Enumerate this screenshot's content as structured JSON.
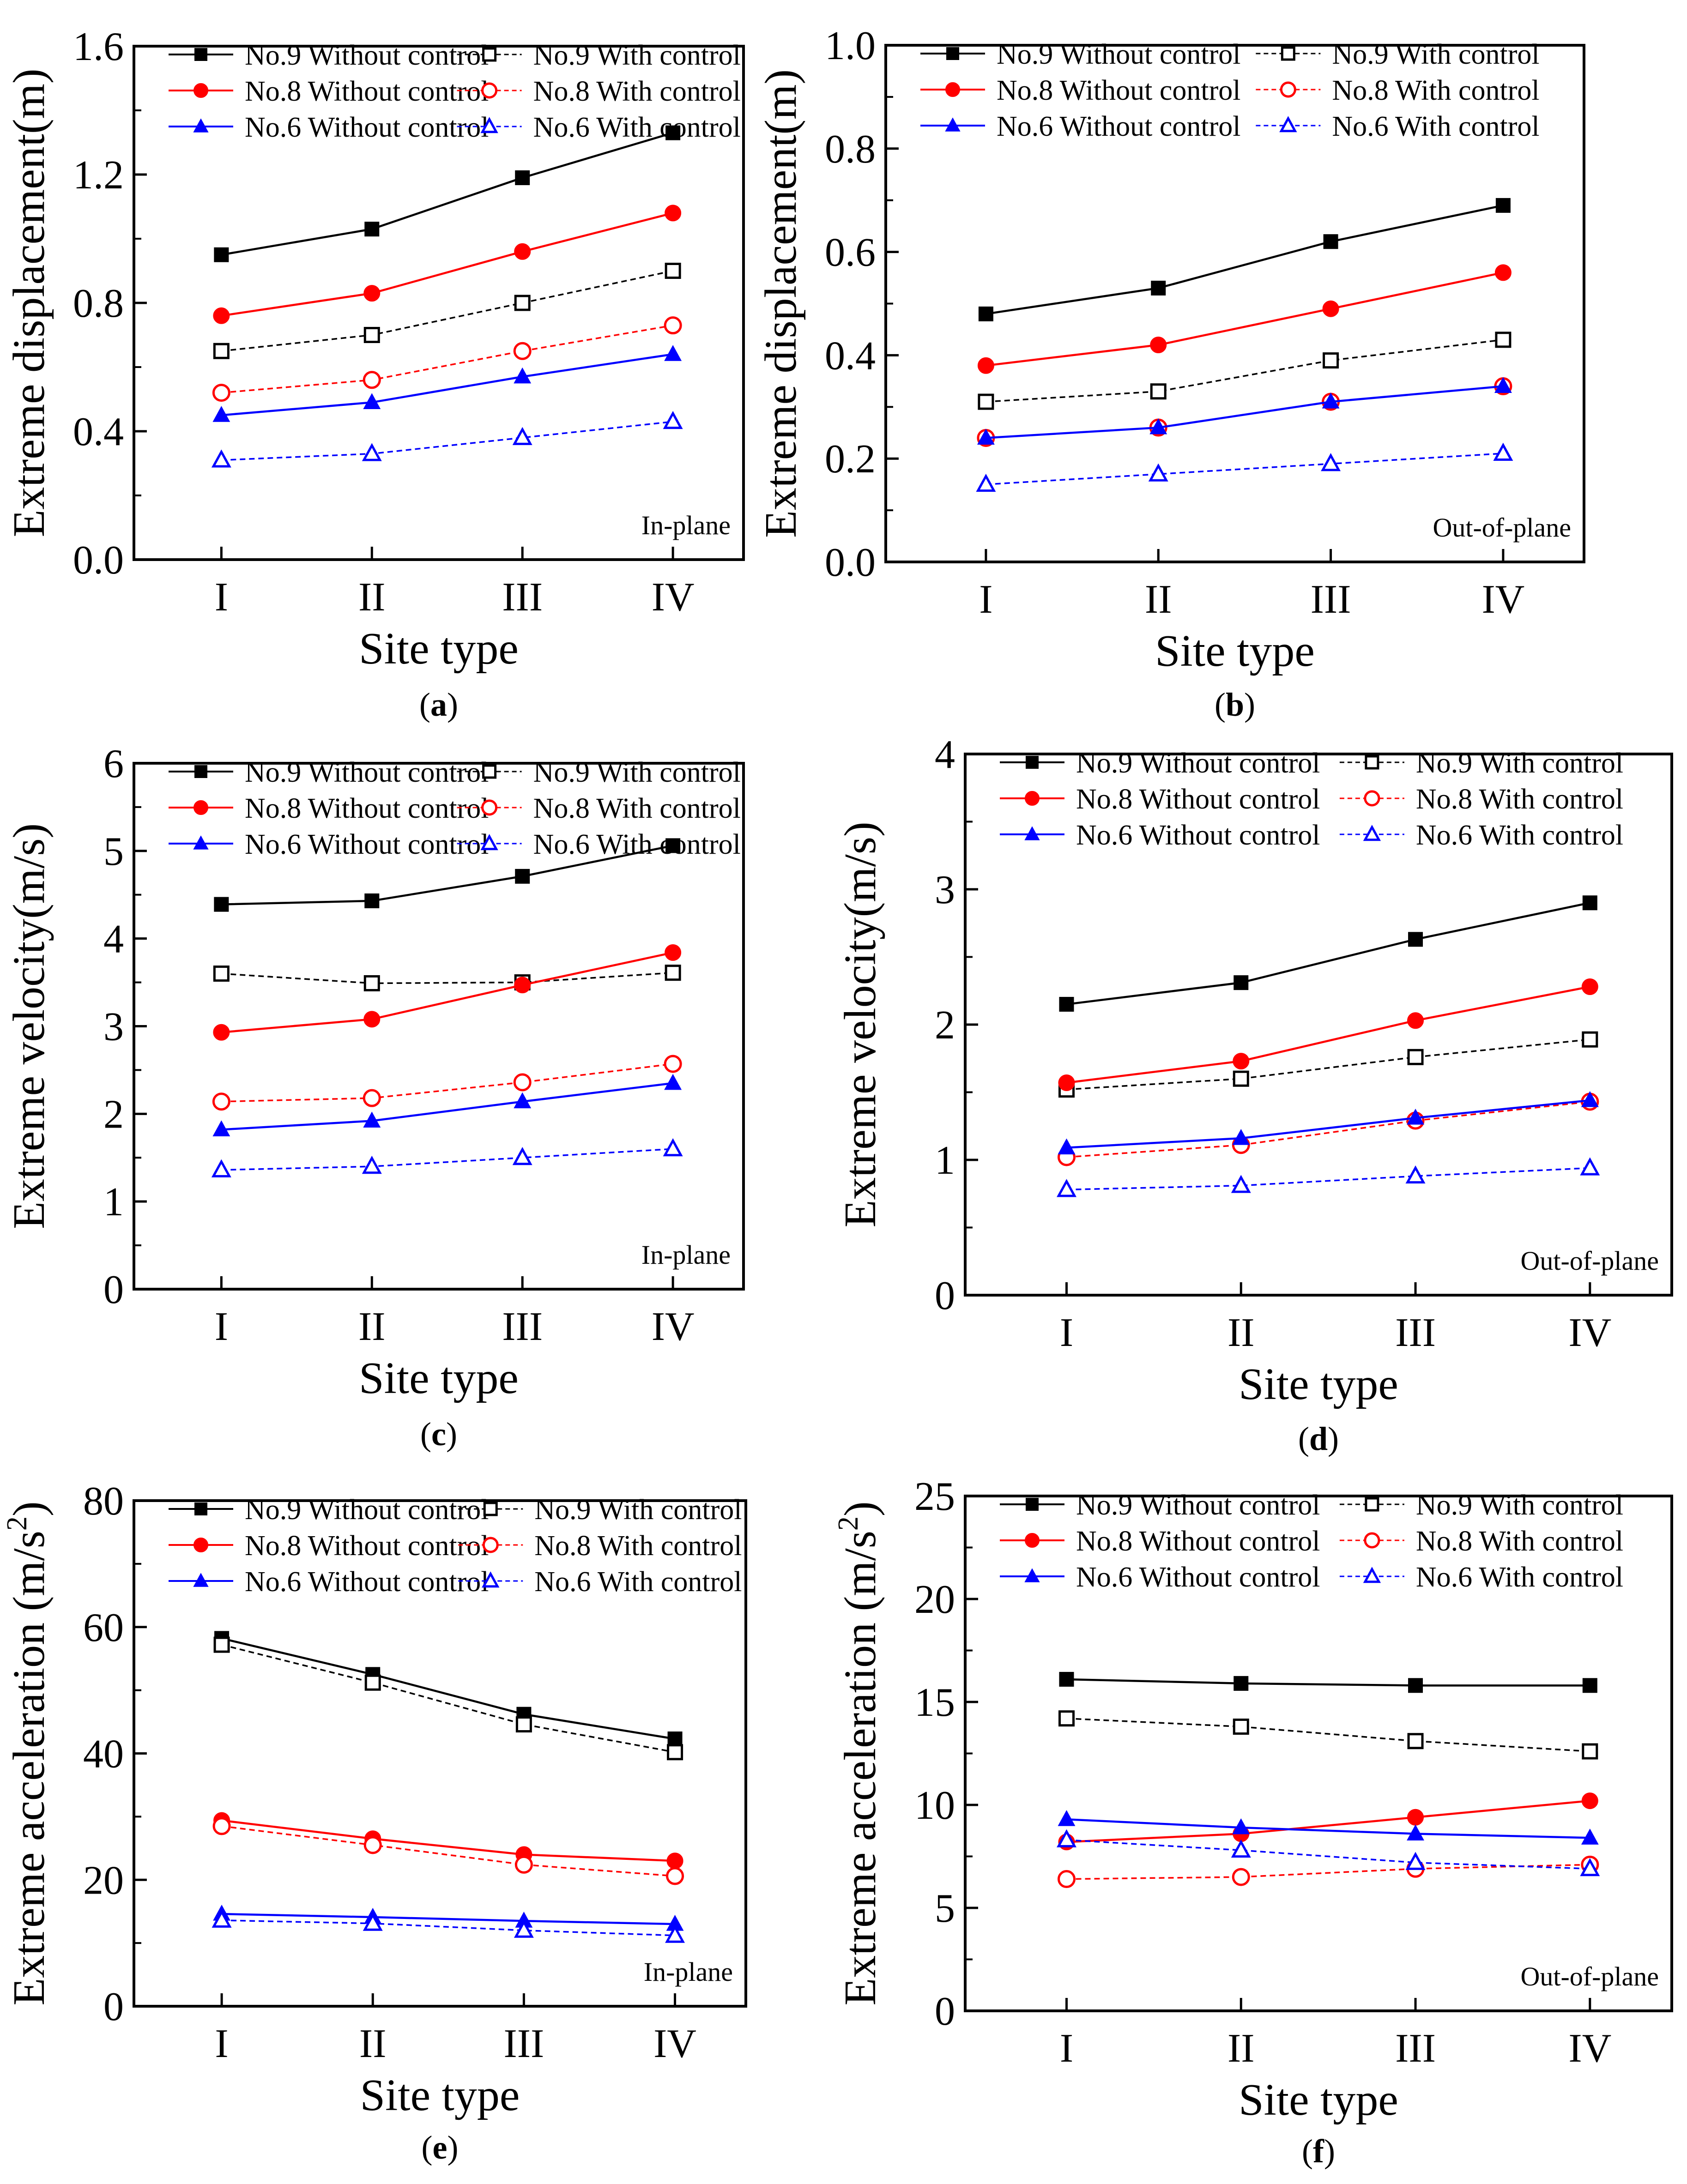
{
  "chart_data": [
    {
      "type": "line",
      "panel": "(a)",
      "caption_letter": "a",
      "annotation": "In-plane",
      "categories": [
        "I",
        "II",
        "III",
        "IV"
      ],
      "xlabel": "Site type",
      "ylabel": "Extreme displacement(m)",
      "ylim": [
        0,
        1.6
      ],
      "yticks": [
        "0.0",
        "0.4",
        "0.8",
        "1.2",
        "1.6"
      ],
      "legend_position": "top",
      "series": [
        {
          "name": "No.9 Without control",
          "color": "#000000",
          "marker": "square",
          "filled": true,
          "dashed": false,
          "values": [
            0.95,
            1.03,
            1.19,
            1.33
          ]
        },
        {
          "name": "No.9 With control",
          "color": "#000000",
          "marker": "square",
          "filled": false,
          "dashed": true,
          "values": [
            0.65,
            0.7,
            0.8,
            0.9
          ]
        },
        {
          "name": "No.8 Without control",
          "color": "#ff0000",
          "marker": "circle",
          "filled": true,
          "dashed": false,
          "values": [
            0.76,
            0.83,
            0.96,
            1.08
          ]
        },
        {
          "name": "No.8 With control",
          "color": "#ff0000",
          "marker": "circle",
          "filled": false,
          "dashed": true,
          "values": [
            0.52,
            0.56,
            0.65,
            0.73
          ]
        },
        {
          "name": "No.6 Without control",
          "color": "#0000ff",
          "marker": "triangle",
          "filled": true,
          "dashed": false,
          "values": [
            0.45,
            0.49,
            0.57,
            0.64
          ]
        },
        {
          "name": "No.6 With control",
          "color": "#0000ff",
          "marker": "triangle",
          "filled": false,
          "dashed": true,
          "values": [
            0.31,
            0.33,
            0.38,
            0.43
          ]
        }
      ]
    },
    {
      "type": "line",
      "panel": "(b)",
      "caption_letter": "b",
      "annotation": "Out-of-plane",
      "categories": [
        "I",
        "II",
        "III",
        "IV"
      ],
      "xlabel": "Site type",
      "ylabel": "Extreme displacement(m)",
      "ylim": [
        0,
        1.0
      ],
      "yticks": [
        "0.0",
        "0.2",
        "0.4",
        "0.6",
        "0.8",
        "1.0"
      ],
      "legend_position": "top",
      "series": [
        {
          "name": "No.9 Without control",
          "color": "#000000",
          "marker": "square",
          "filled": true,
          "dashed": false,
          "values": [
            0.48,
            0.53,
            0.62,
            0.69
          ]
        },
        {
          "name": "No.9 With control",
          "color": "#000000",
          "marker": "square",
          "filled": false,
          "dashed": true,
          "values": [
            0.31,
            0.33,
            0.39,
            0.43
          ]
        },
        {
          "name": "No.8 Without control",
          "color": "#ff0000",
          "marker": "circle",
          "filled": true,
          "dashed": false,
          "values": [
            0.38,
            0.42,
            0.49,
            0.56
          ]
        },
        {
          "name": "No.8 With control",
          "color": "#ff0000",
          "marker": "circle",
          "filled": false,
          "dashed": true,
          "values": [
            0.24,
            0.26,
            0.31,
            0.34
          ]
        },
        {
          "name": "No.6 Without control",
          "color": "#0000ff",
          "marker": "triangle",
          "filled": true,
          "dashed": false,
          "values": [
            0.24,
            0.26,
            0.31,
            0.34
          ]
        },
        {
          "name": "No.6 With control",
          "color": "#0000ff",
          "marker": "triangle",
          "filled": false,
          "dashed": true,
          "values": [
            0.15,
            0.17,
            0.19,
            0.21
          ]
        }
      ]
    },
    {
      "type": "line",
      "panel": "(c)",
      "caption_letter": "c",
      "annotation": "In-plane",
      "categories": [
        "I",
        "II",
        "III",
        "IV"
      ],
      "xlabel": "Site type",
      "ylabel": "Extreme velocity(m/s)",
      "ylim": [
        0,
        6
      ],
      "yticks": [
        "0",
        "1",
        "2",
        "3",
        "4",
        "5",
        "6"
      ],
      "legend_position": "top",
      "series": [
        {
          "name": "No.9 Without control",
          "color": "#000000",
          "marker": "square",
          "filled": true,
          "dashed": false,
          "values": [
            4.39,
            4.43,
            4.71,
            5.06
          ]
        },
        {
          "name": "No.9 With control",
          "color": "#000000",
          "marker": "square",
          "filled": false,
          "dashed": true,
          "values": [
            3.6,
            3.49,
            3.5,
            3.61
          ]
        },
        {
          "name": "No.8 Without control",
          "color": "#ff0000",
          "marker": "circle",
          "filled": true,
          "dashed": false,
          "values": [
            2.93,
            3.08,
            3.47,
            3.84
          ]
        },
        {
          "name": "No.8 With control",
          "color": "#ff0000",
          "marker": "circle",
          "filled": false,
          "dashed": true,
          "values": [
            2.14,
            2.18,
            2.36,
            2.57
          ]
        },
        {
          "name": "No.6 Without control",
          "color": "#0000ff",
          "marker": "triangle",
          "filled": true,
          "dashed": false,
          "values": [
            1.82,
            1.92,
            2.14,
            2.35
          ]
        },
        {
          "name": "No.6 With control",
          "color": "#0000ff",
          "marker": "triangle",
          "filled": false,
          "dashed": true,
          "values": [
            1.36,
            1.4,
            1.5,
            1.6
          ]
        }
      ]
    },
    {
      "type": "line",
      "panel": "(d)",
      "caption_letter": "d",
      "annotation": "Out-of-plane",
      "categories": [
        "I",
        "II",
        "III",
        "IV"
      ],
      "xlabel": "Site type",
      "ylabel": "Extreme velocity(m/s)",
      "ylim": [
        0,
        4
      ],
      "yticks": [
        "0",
        "1",
        "2",
        "3",
        "4"
      ],
      "legend_position": "top",
      "series": [
        {
          "name": "No.9 Without control",
          "color": "#000000",
          "marker": "square",
          "filled": true,
          "dashed": false,
          "values": [
            2.15,
            2.31,
            2.63,
            2.9
          ]
        },
        {
          "name": "No.9 With control",
          "color": "#000000",
          "marker": "square",
          "filled": false,
          "dashed": true,
          "values": [
            1.52,
            1.6,
            1.76,
            1.89
          ]
        },
        {
          "name": "No.8 Without control",
          "color": "#ff0000",
          "marker": "circle",
          "filled": true,
          "dashed": false,
          "values": [
            1.57,
            1.73,
            2.03,
            2.28
          ]
        },
        {
          "name": "No.8 With control",
          "color": "#ff0000",
          "marker": "circle",
          "filled": false,
          "dashed": true,
          "values": [
            1.02,
            1.11,
            1.29,
            1.43
          ]
        },
        {
          "name": "No.6 Without control",
          "color": "#0000ff",
          "marker": "triangle",
          "filled": true,
          "dashed": false,
          "values": [
            1.09,
            1.16,
            1.31,
            1.44
          ]
        },
        {
          "name": "No.6 With control",
          "color": "#0000ff",
          "marker": "triangle",
          "filled": false,
          "dashed": true,
          "values": [
            0.78,
            0.81,
            0.88,
            0.94
          ]
        }
      ]
    },
    {
      "type": "line",
      "panel": "(e)",
      "caption_letter": "e",
      "annotation": "In-plane",
      "categories": [
        "I",
        "II",
        "III",
        "IV"
      ],
      "xlabel": "Site type",
      "ylabel": "Extreme acceleration (m/s",
      "ylabel_superscript": "2",
      "ylabel_suffix": ")",
      "ylim": [
        0,
        80
      ],
      "yticks": [
        "0",
        "20",
        "40",
        "60",
        "80"
      ],
      "legend_position": "top",
      "series": [
        {
          "name": "No.9 Without control",
          "color": "#000000",
          "marker": "square",
          "filled": true,
          "dashed": false,
          "values": [
            58.2,
            52.5,
            46.2,
            42.3
          ]
        },
        {
          "name": "No.9 With control",
          "color": "#000000",
          "marker": "square",
          "filled": false,
          "dashed": true,
          "values": [
            57.2,
            51.2,
            44.6,
            40.2
          ]
        },
        {
          "name": "No.8 Without control",
          "color": "#ff0000",
          "marker": "circle",
          "filled": true,
          "dashed": false,
          "values": [
            29.4,
            26.5,
            24.0,
            23.0
          ]
        },
        {
          "name": "No.8 With control",
          "color": "#ff0000",
          "marker": "circle",
          "filled": false,
          "dashed": true,
          "values": [
            28.5,
            25.5,
            22.4,
            20.6
          ]
        },
        {
          "name": "No.6 Without control",
          "color": "#0000ff",
          "marker": "triangle",
          "filled": true,
          "dashed": false,
          "values": [
            14.6,
            14.1,
            13.5,
            13.0
          ]
        },
        {
          "name": "No.6 With control",
          "color": "#0000ff",
          "marker": "triangle",
          "filled": false,
          "dashed": true,
          "values": [
            13.6,
            13.1,
            12.0,
            11.2
          ]
        }
      ]
    },
    {
      "type": "line",
      "panel": "(f)",
      "caption_letter": "f",
      "annotation": "Out-of-plane",
      "categories": [
        "I",
        "II",
        "III",
        "IV"
      ],
      "xlabel": "Site type",
      "ylabel": "Extreme acceleration (m/s",
      "ylabel_superscript": "2",
      "ylabel_suffix": ")",
      "ylim": [
        0,
        25
      ],
      "yticks": [
        "0",
        "5",
        "10",
        "15",
        "20",
        "25"
      ],
      "legend_position": "top",
      "series": [
        {
          "name": "No.9 Without control",
          "color": "#000000",
          "marker": "square",
          "filled": true,
          "dashed": false,
          "values": [
            16.1,
            15.9,
            15.8,
            15.8
          ]
        },
        {
          "name": "No.9 With control",
          "color": "#000000",
          "marker": "square",
          "filled": false,
          "dashed": true,
          "values": [
            14.2,
            13.8,
            13.1,
            12.6
          ]
        },
        {
          "name": "No.8 Without control",
          "color": "#ff0000",
          "marker": "circle",
          "filled": true,
          "dashed": false,
          "values": [
            8.2,
            8.6,
            9.4,
            10.2
          ]
        },
        {
          "name": "No.8 With control",
          "color": "#ff0000",
          "marker": "circle",
          "filled": false,
          "dashed": true,
          "values": [
            6.4,
            6.5,
            6.9,
            7.1
          ]
        },
        {
          "name": "No.6 Without control",
          "color": "#0000ff",
          "marker": "triangle",
          "filled": true,
          "dashed": false,
          "values": [
            9.3,
            8.9,
            8.6,
            8.4
          ]
        },
        {
          "name": "No.6 With control",
          "color": "#0000ff",
          "marker": "triangle",
          "filled": false,
          "dashed": true,
          "values": [
            8.3,
            7.8,
            7.2,
            6.9
          ]
        }
      ]
    }
  ]
}
